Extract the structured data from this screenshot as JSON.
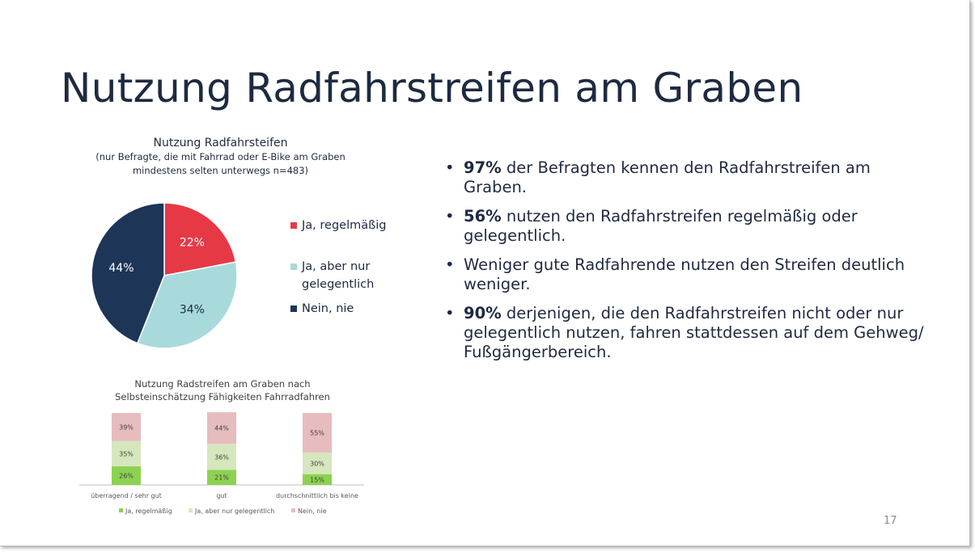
{
  "slide": {
    "title": "Nutzung Radfahrstreifen am Graben",
    "page_number": "17"
  },
  "pie": {
    "title": "Nutzung Radfahrsteifen",
    "subtitle": "(nur Befragte, die mit Fahrrad oder E-Bike am Graben mindestens selten unterwegs n=483)",
    "legend": [
      {
        "label_line1": "Ja, regelmäßig",
        "label_line2": "",
        "color": "#e63946"
      },
      {
        "label_line1": "Ja, aber nur",
        "label_line2": "gelegentlich",
        "color": "#a8dadc"
      },
      {
        "label_line1": "Nein, nie",
        "label_line2": "",
        "color": "#1d3557"
      }
    ]
  },
  "bar_chart_title": {
    "line1": "Nutzung Radstreifen am Graben nach",
    "line2": "Selbsteinschätzung Fähigkeiten Fahrradfahren"
  },
  "bullets": [
    {
      "bold": "97%",
      "text": " der Befragten kennen den Radfahrstreifen am Graben."
    },
    {
      "bold": "56%",
      "text": " nutzen den Radfahrstreifen regelmäßig oder gelegentlich."
    },
    {
      "bold": "",
      "text": "Weniger gute Radfahrende nutzen den Streifen deutlich weniger."
    },
    {
      "bold": "90%",
      "text": " derjenigen, die den Radfahrstreifen nicht oder nur gelegentlich nutzen, fahren stattdessen auf dem Gehweg/ Fußgängerbereich."
    }
  ],
  "bullet_glyph": "•",
  "chart_data": [
    {
      "type": "pie",
      "title": "Nutzung Radfahrsteifen",
      "subtitle": "(nur Befragte, die mit Fahrrad oder E-Bike am Graben mindestens selten unterwegs n=483)",
      "categories": [
        "Ja, regelmäßig",
        "Ja, aber nur gelegentlich",
        "Nein, nie"
      ],
      "values": [
        22,
        34,
        44
      ],
      "labels": [
        "22%",
        "34%",
        "44%"
      ],
      "colors": [
        "#e63946",
        "#a8dadc",
        "#1d3557"
      ],
      "legend_position": "right"
    },
    {
      "type": "bar",
      "stacked": true,
      "title": "Nutzung Radstreifen am Graben nach Selbsteinschätzung Fähigkeiten Fahrradfahren",
      "categories": [
        "überragend / sehr gut",
        "gut",
        "durchschnittlich bis keine"
      ],
      "series": [
        {
          "name": "Ja, regelmäßig",
          "values": [
            26,
            21,
            15
          ],
          "labels": [
            "26%",
            "21%",
            "15%"
          ],
          "color": "#8cd250"
        },
        {
          "name": "Ja, aber nur gelegentlich",
          "values": [
            35,
            36,
            30
          ],
          "labels": [
            "35%",
            "36%",
            "30%"
          ],
          "color": "#d6e7bd"
        },
        {
          "name": "Nein, nie",
          "values": [
            39,
            44,
            55
          ],
          "labels": [
            "39%",
            "44%",
            "55%"
          ],
          "color": "#e6bcbf"
        }
      ],
      "ylim": [
        0,
        100
      ],
      "legend_position": "bottom"
    }
  ]
}
